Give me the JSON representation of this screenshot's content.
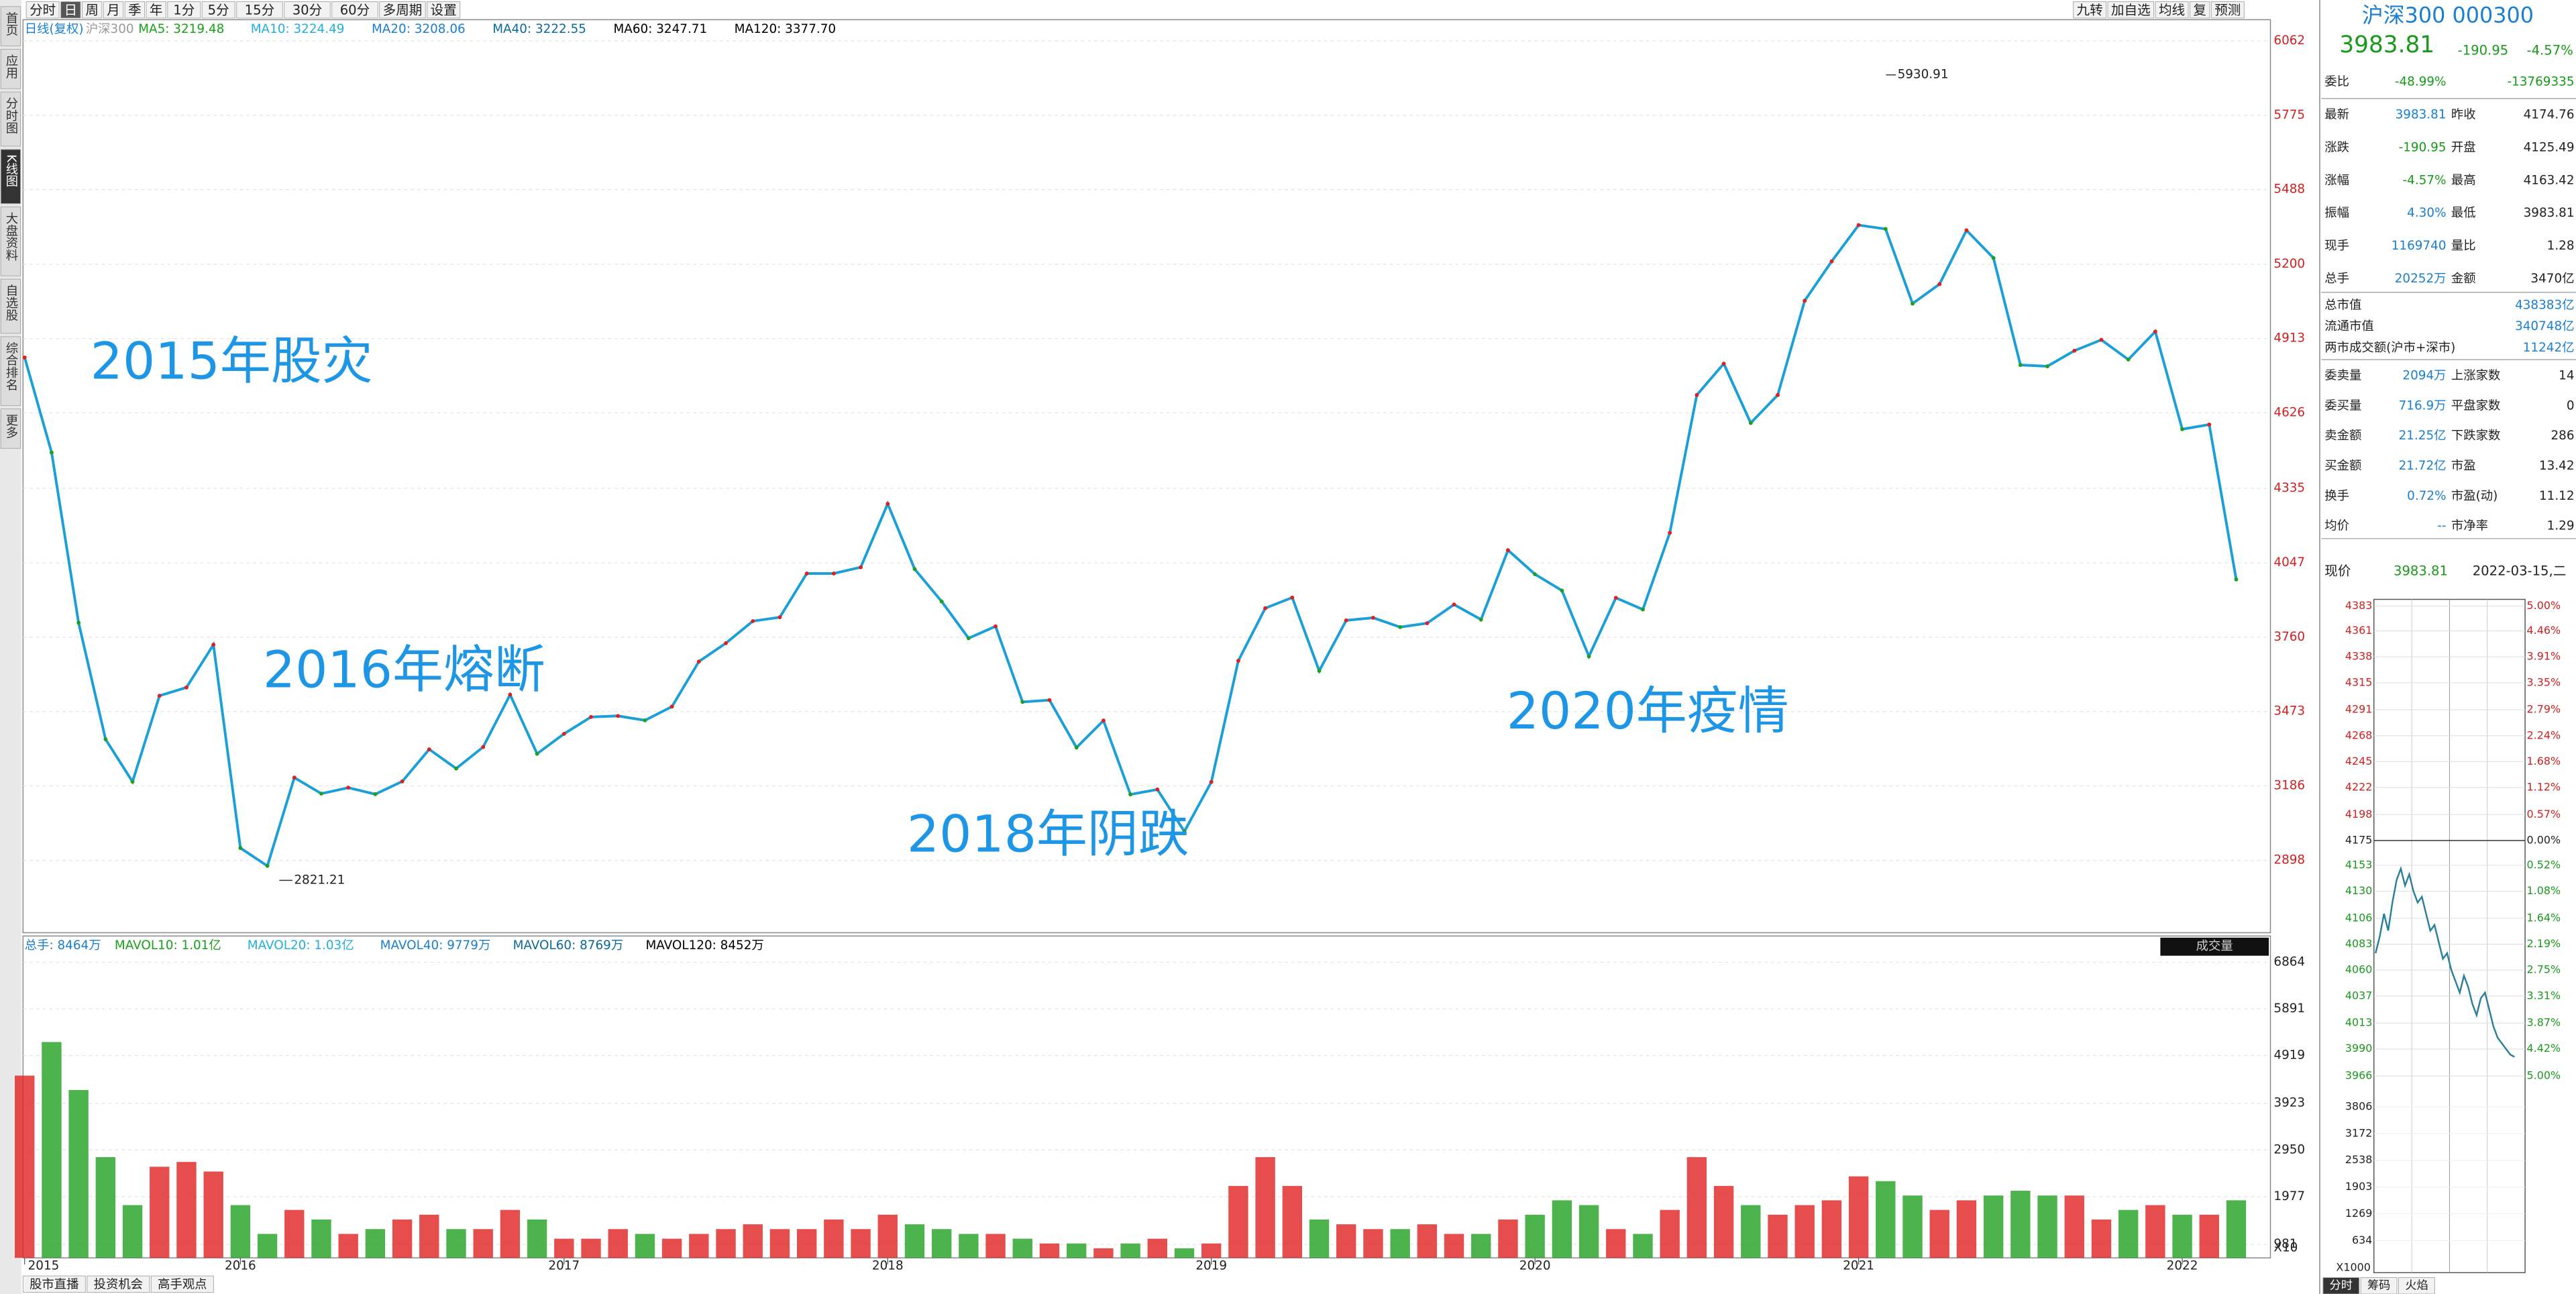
{
  "toolbar": {
    "left": [
      "分时",
      "日",
      "周",
      "月",
      "季",
      "年",
      "1分",
      "5分",
      "15分",
      "30分",
      "60分",
      "多周期",
      "设置"
    ],
    "right": [
      "九转",
      "加自选",
      "均线",
      "复",
      "预测"
    ]
  },
  "sidebar": [
    "首页",
    "应用",
    "分时图",
    "K线图",
    "大盘资料",
    "自选股",
    "综合排名",
    "更多"
  ],
  "ma_legend": [
    {
      "text": "日线(复权)",
      "color": "#1a7fd0"
    },
    {
      "text": "沪深300",
      "color": "#999999"
    },
    {
      "text": "MA5: 3219.48",
      "color": "#1aa01a"
    },
    {
      "text": "MA10: 3224.49",
      "color": "#20b0e0"
    },
    {
      "text": "MA20: 3208.06",
      "color": "#1a7fd0"
    },
    {
      "text": "MA40: 3222.55",
      "color": "#0a6a9a"
    },
    {
      "text": "MA60: 3247.71",
      "color": "#000000"
    },
    {
      "text": "MA120: 3377.70",
      "color": "#000000"
    }
  ],
  "price_chart": {
    "ylim": [
      2619,
      6144
    ],
    "yticks": [
      6062,
      5775,
      5488,
      5200,
      4913,
      4626,
      4335,
      4047,
      3760,
      3473,
      3186,
      2898
    ],
    "color": "#1a9fd8",
    "values": [
      4840,
      4473,
      3816,
      3366,
      3202,
      3534,
      3566,
      3731,
      2946,
      2877,
      3218,
      3156,
      3179,
      3154,
      3203,
      3327,
      3253,
      3336,
      3538,
      3310,
      3387,
      3452,
      3456,
      3439,
      3492,
      3666,
      3737,
      3822,
      3837,
      4006,
      4006,
      4030,
      4275,
      4023,
      3898,
      3756,
      3802,
      3510,
      3517,
      3334,
      3438,
      3153,
      3172,
      3010,
      3201,
      3669,
      3872,
      3913,
      3630,
      3825,
      3835,
      3799,
      3814,
      3886,
      3828,
      4096,
      4003,
      3940,
      3686,
      3912,
      3867,
      4163,
      4695,
      4816,
      4587,
      4695,
      5059,
      5211,
      5351,
      5336,
      5048,
      5123,
      5331,
      5224,
      4811,
      4806,
      4866,
      4908,
      4832,
      4940,
      4563,
      4581,
      3983
    ],
    "high": {
      "value": 5930.91,
      "label": "5930.91"
    },
    "low": {
      "value": 2821.21,
      "label": "2821.21"
    },
    "annotations": [
      "2015年股灾",
      "2016年熔断",
      "2018年阴跌",
      "2020年疫情"
    ]
  },
  "volume_legend": [
    {
      "text": "总手: 8464万",
      "color": "#1a7fd0"
    },
    {
      "text": "MAVOL10: 1.01亿",
      "color": "#1aa01a"
    },
    {
      "text": "MAVOL20: 1.03亿",
      "color": "#20b0e0"
    },
    {
      "text": "MAVOL40: 9779万",
      "color": "#1a7fd0"
    },
    {
      "text": "MAVOL60: 8769万",
      "color": "#0a6a9a"
    },
    {
      "text": "MAVOL120: 8452万",
      "color": "#000000"
    }
  ],
  "volume_chart": {
    "label": "成交量",
    "multiplier": "X10",
    "ylim": [
      700,
      7000
    ],
    "yticks": [
      6864,
      5891,
      4919,
      3923,
      2950,
      1977,
      981
    ],
    "values": [
      4500,
      5200,
      4200,
      2800,
      1800,
      2600,
      2700,
      2500,
      1800,
      1200,
      1700,
      1500,
      1200,
      1300,
      1500,
      1600,
      1300,
      1300,
      1700,
      1500,
      1100,
      1100,
      1300,
      1200,
      1100,
      1200,
      1300,
      1400,
      1300,
      1300,
      1500,
      1300,
      1600,
      1400,
      1300,
      1200,
      1200,
      1100,
      1000,
      1000,
      900,
      1000,
      1100,
      900,
      1000,
      2200,
      2800,
      2200,
      1500,
      1400,
      1300,
      1300,
      1400,
      1200,
      1200,
      1500,
      1600,
      1900,
      1800,
      1300,
      1200,
      1700,
      2800,
      2200,
      1800,
      1600,
      1800,
      1900,
      2400,
      2300,
      2000,
      1700,
      1900,
      2000,
      2100,
      2000,
      2000,
      1500,
      1700,
      1800,
      1600,
      1600,
      1900
    ]
  },
  "x_axis": [
    "2015",
    "2016",
    "2017",
    "2018",
    "2019",
    "2020",
    "2021",
    "2022"
  ],
  "bottom_tabs": [
    "股市直播",
    "投资机会",
    "高手观点"
  ],
  "quote": {
    "title": "沪深300 000300",
    "price": "3983.81",
    "change": "-190.95",
    "pct": "-4.57%",
    "rows": [
      [
        "委比",
        "-48.99%",
        "",
        "-13769335"
      ],
      [
        "最新",
        "3983.81",
        "昨收",
        "4174.76"
      ],
      [
        "涨跌",
        "-190.95",
        "开盘",
        "4125.49"
      ],
      [
        "涨幅",
        "-4.57%",
        "最高",
        "4163.42"
      ],
      [
        "振幅",
        "4.30%",
        "最低",
        "3983.81"
      ],
      [
        "现手",
        "1169740",
        "量比",
        "1.28"
      ],
      [
        "总手",
        "20252万",
        "金额",
        "3470亿"
      ]
    ],
    "rows2": [
      [
        "总市值",
        "438383亿"
      ],
      [
        "流通市值",
        "340748亿"
      ],
      [
        "两市成交额(沪市+深市)",
        "11242亿"
      ]
    ],
    "rows3": [
      [
        "委卖量",
        "2094万",
        "上涨家数",
        "14"
      ],
      [
        "委买量",
        "716.9万",
        "平盘家数",
        "0"
      ],
      [
        "卖金额",
        "21.25亿",
        "下跌家数",
        "286"
      ],
      [
        "买金额",
        "21.72亿",
        "市盈",
        "13.42"
      ],
      [
        "换手",
        "0.72%",
        "市盈(动)",
        "11.12"
      ],
      [
        "均价",
        "--",
        "市净率",
        "1.29"
      ]
    ],
    "now_label": "现价",
    "now_price": "3983.81",
    "date": "2022-03-15,二"
  },
  "intraday": {
    "ylim": [
      3962,
      4389
    ],
    "color": "#2a7f9a",
    "yticks": [
      4383,
      4361,
      4338,
      4315,
      4291,
      4268,
      4245,
      4222,
      4198,
      4175,
      4153,
      4130,
      4106,
      4083,
      4060,
      4037,
      4013,
      3990,
      3966
    ],
    "pct_labels": [
      "5.00%",
      "4.46%",
      "3.91%",
      "3.35%",
      "2.79%",
      "2.24%",
      "1.68%",
      "1.12%",
      "0.57%",
      "0.00%",
      "0.52%",
      "1.08%",
      "1.64%",
      "2.19%",
      "2.75%",
      "3.31%",
      "3.87%",
      "4.42%",
      "5.00%"
    ],
    "values": [
      4075,
      4090,
      4110,
      4095,
      4120,
      4140,
      4150,
      4135,
      4145,
      4130,
      4120,
      4125,
      4110,
      4095,
      4100,
      4085,
      4070,
      4075,
      4060,
      4050,
      4040,
      4055,
      4045,
      4030,
      4020,
      4035,
      4040,
      4025,
      4010,
      4000,
      3995,
      3990,
      3985,
      3983
    ],
    "vol_labels": [
      "3806",
      "3172",
      "2538",
      "1903",
      "1269",
      "634"
    ],
    "vol_multiplier": "X1000",
    "tabs": [
      "分时",
      "筹码",
      "火焰"
    ]
  }
}
